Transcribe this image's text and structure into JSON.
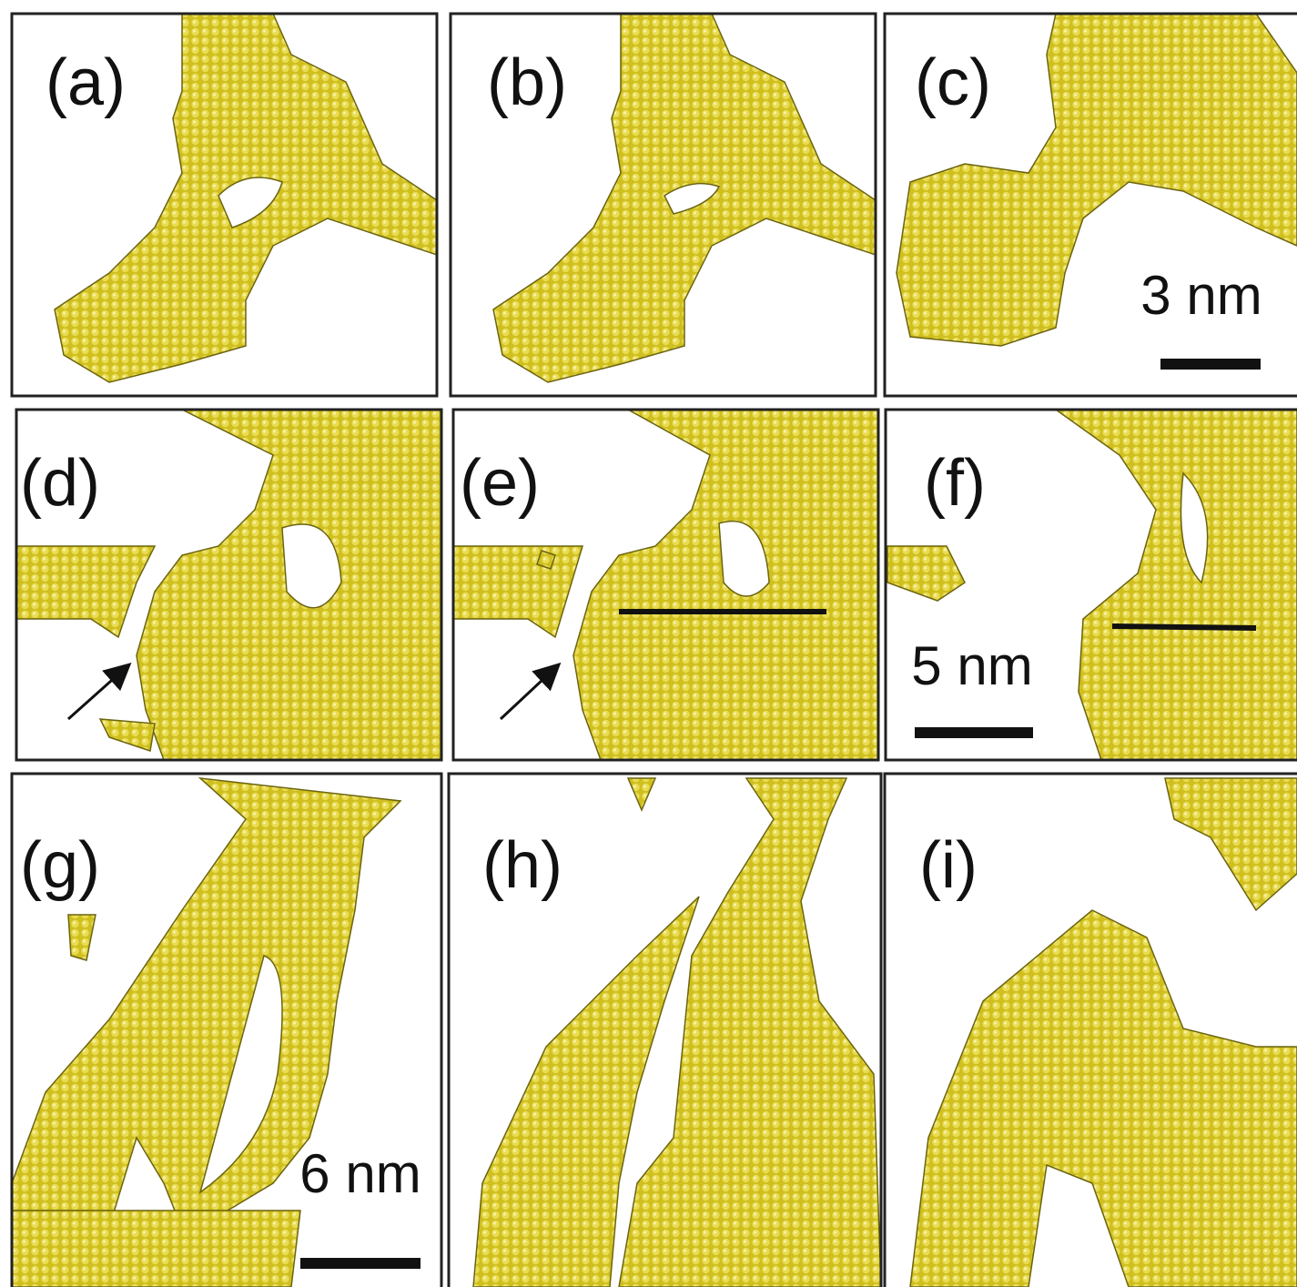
{
  "panels": [
    {
      "label": "(a)"
    },
    {
      "label": "(b)"
    },
    {
      "label": "(c)",
      "scale_bar": "3 nm"
    },
    {
      "label": "(d)"
    },
    {
      "label": "(e)"
    },
    {
      "label": "(f)",
      "scale_bar": "5 nm"
    },
    {
      "label": "(g)",
      "scale_bar": "6 nm"
    },
    {
      "label": "(h)"
    },
    {
      "label": "(i)"
    }
  ]
}
